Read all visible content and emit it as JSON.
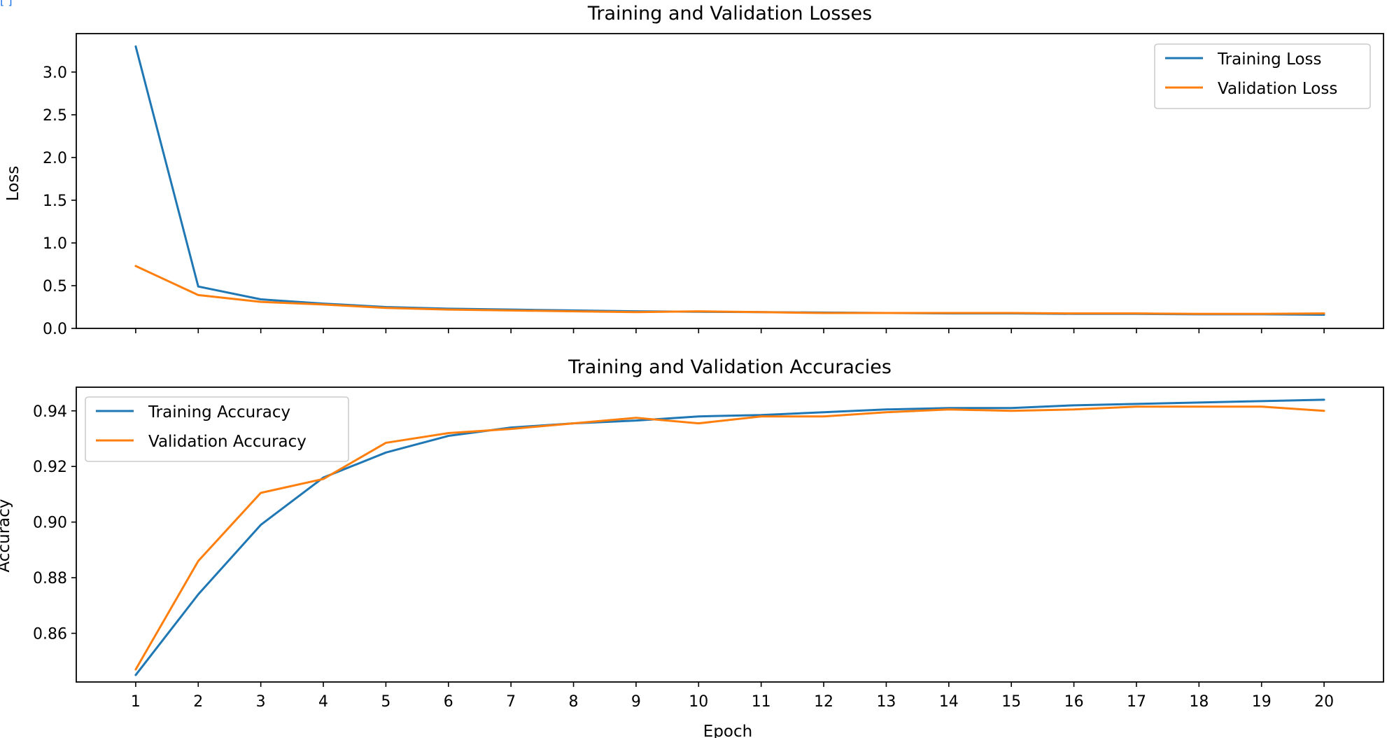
{
  "page": {
    "link_fragment": "[ ]"
  },
  "colors": {
    "training": "#1f77b4",
    "validation": "#ff7f0e"
  },
  "chart_data": [
    {
      "type": "line",
      "title": "Training and Validation Losses",
      "xlabel": "",
      "ylabel": "Loss",
      "x": [
        1,
        2,
        3,
        4,
        5,
        6,
        7,
        8,
        9,
        10,
        11,
        12,
        13,
        14,
        15,
        16,
        17,
        18,
        19,
        20
      ],
      "xticklabels": [],
      "ylim": [
        0.0,
        3.45
      ],
      "yticks": [
        0.0,
        0.5,
        1.0,
        1.5,
        2.0,
        2.5,
        3.0
      ],
      "yticklabels": [
        "0.0",
        "0.5",
        "1.0",
        "1.5",
        "2.0",
        "2.5",
        "3.0"
      ],
      "legend": "top-right",
      "grid": false,
      "series": [
        {
          "name": "Training Loss",
          "values": [
            3.3,
            0.49,
            0.34,
            0.29,
            0.25,
            0.23,
            0.22,
            0.21,
            0.2,
            0.195,
            0.19,
            0.185,
            0.18,
            0.175,
            0.175,
            0.17,
            0.17,
            0.165,
            0.165,
            0.16
          ]
        },
        {
          "name": "Validation Loss",
          "values": [
            0.73,
            0.39,
            0.31,
            0.28,
            0.24,
            0.22,
            0.21,
            0.2,
            0.19,
            0.2,
            0.19,
            0.18,
            0.18,
            0.18,
            0.18,
            0.175,
            0.175,
            0.17,
            0.17,
            0.175
          ]
        }
      ]
    },
    {
      "type": "line",
      "title": "Training and Validation Accuracies",
      "xlabel": "Epoch",
      "ylabel": "Accuracy",
      "x": [
        1,
        2,
        3,
        4,
        5,
        6,
        7,
        8,
        9,
        10,
        11,
        12,
        13,
        14,
        15,
        16,
        17,
        18,
        19,
        20
      ],
      "xticklabels": [
        "1",
        "2",
        "3",
        "4",
        "5",
        "6",
        "7",
        "8",
        "9",
        "10",
        "11",
        "12",
        "13",
        "14",
        "15",
        "16",
        "17",
        "18",
        "19",
        "20"
      ],
      "ylim": [
        0.8425,
        0.9485
      ],
      "yticks": [
        0.86,
        0.88,
        0.9,
        0.92,
        0.94
      ],
      "yticklabels": [
        "0.86",
        "0.88",
        "0.90",
        "0.92",
        "0.94"
      ],
      "legend": "top-left",
      "grid": false,
      "series": [
        {
          "name": "Training Accuracy",
          "values": [
            0.845,
            0.874,
            0.899,
            0.916,
            0.925,
            0.931,
            0.934,
            0.9355,
            0.9365,
            0.938,
            0.9385,
            0.9395,
            0.9405,
            0.941,
            0.941,
            0.942,
            0.9425,
            0.943,
            0.9435,
            0.944
          ]
        },
        {
          "name": "Validation Accuracy",
          "values": [
            0.847,
            0.886,
            0.9105,
            0.9155,
            0.9285,
            0.932,
            0.9335,
            0.9355,
            0.9375,
            0.9355,
            0.938,
            0.938,
            0.9395,
            0.9405,
            0.94,
            0.9405,
            0.9415,
            0.9415,
            0.9415,
            0.94
          ]
        }
      ]
    }
  ]
}
